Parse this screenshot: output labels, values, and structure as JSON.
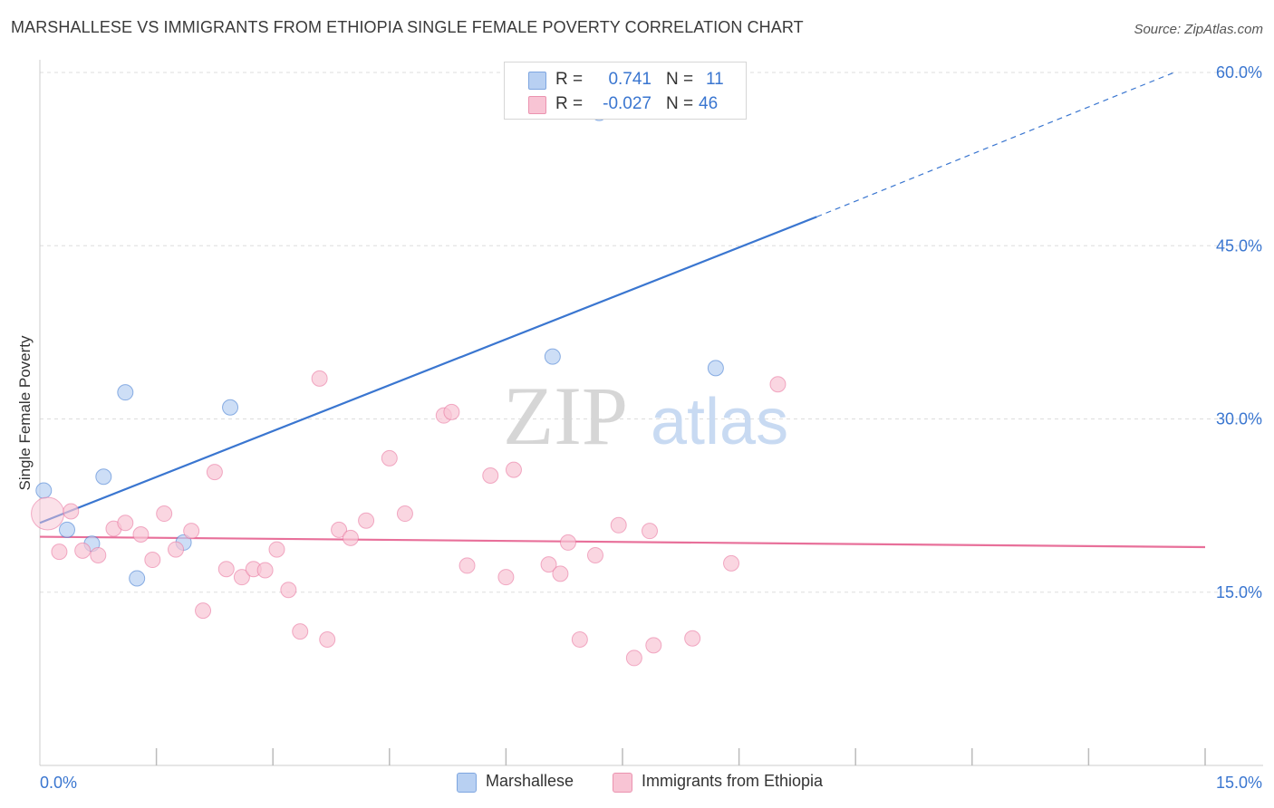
{
  "title": "MARSHALLESE VS IMMIGRANTS FROM ETHIOPIA SINGLE FEMALE POVERTY CORRELATION CHART",
  "source": "Source: ZipAtlas.com",
  "watermark": {
    "zip": "ZIP",
    "atlas": "atlas"
  },
  "colors": {
    "blue": "#3a76d0",
    "blue_fill": "#b8d0f2",
    "pink": "#e8709a",
    "pink_fill": "#f8c4d4",
    "grid": "#dddddd",
    "axis_text": "#3a76d0"
  },
  "legend_top": {
    "rows": [
      {
        "r_label": "R =",
        "r_value": "0.741",
        "n_label": "N =",
        "n_value": "11"
      },
      {
        "r_label": "R =",
        "r_value": "-0.027",
        "n_label": "N =",
        "n_value": "46"
      }
    ]
  },
  "legend_bottom": [
    "Marshallese",
    "Immigrants from Ethiopia"
  ],
  "chart_data": {
    "type": "scatter",
    "title": "MARSHALLESE VS IMMIGRANTS FROM ETHIOPIA SINGLE FEMALE POVERTY CORRELATION CHART",
    "xlabel": "",
    "ylabel": "Single Female Poverty",
    "xlim": [
      0,
      15
    ],
    "ylim": [
      0,
      60
    ],
    "x_tick_labels": [
      "0.0%",
      "15.0%"
    ],
    "y_ticks": [
      15,
      30,
      45,
      60
    ],
    "y_tick_labels": [
      "15.0%",
      "30.0%",
      "45.0%",
      "60.0%"
    ],
    "series": [
      {
        "name": "Marshallese",
        "color": "blue",
        "points": [
          [
            0.05,
            23.8
          ],
          [
            0.35,
            20.4
          ],
          [
            0.67,
            19.2
          ],
          [
            0.82,
            25.0
          ],
          [
            1.1,
            32.3
          ],
          [
            1.25,
            16.2
          ],
          [
            1.85,
            19.3
          ],
          [
            2.45,
            31.0
          ],
          [
            6.6,
            35.4
          ],
          [
            7.2,
            56.5
          ],
          [
            8.7,
            34.4
          ]
        ],
        "trend": {
          "x0": 0.0,
          "y0": 21.0,
          "x1": 10.0,
          "y1": 47.5,
          "dash_x1": 14.6,
          "dash_y1": 60.0
        }
      },
      {
        "name": "Immigrants from Ethiopia",
        "color": "pink",
        "points": [
          [
            0.1,
            21.8
          ],
          [
            0.25,
            18.5
          ],
          [
            0.4,
            22.0
          ],
          [
            0.55,
            18.6
          ],
          [
            0.75,
            18.2
          ],
          [
            0.95,
            20.5
          ],
          [
            1.1,
            21.0
          ],
          [
            1.3,
            20.0
          ],
          [
            1.45,
            17.8
          ],
          [
            1.6,
            21.8
          ],
          [
            1.75,
            18.7
          ],
          [
            1.95,
            20.3
          ],
          [
            2.1,
            13.4
          ],
          [
            2.25,
            25.4
          ],
          [
            2.4,
            17.0
          ],
          [
            2.6,
            16.3
          ],
          [
            2.75,
            17.0
          ],
          [
            2.9,
            16.9
          ],
          [
            3.05,
            18.7
          ],
          [
            3.2,
            15.2
          ],
          [
            3.35,
            11.6
          ],
          [
            3.6,
            33.5
          ],
          [
            3.7,
            10.9
          ],
          [
            3.85,
            20.4
          ],
          [
            4.0,
            19.7
          ],
          [
            4.2,
            21.2
          ],
          [
            4.5,
            26.6
          ],
          [
            4.7,
            21.8
          ],
          [
            5.2,
            30.3
          ],
          [
            5.3,
            30.6
          ],
          [
            5.5,
            17.3
          ],
          [
            5.8,
            25.1
          ],
          [
            6.0,
            16.3
          ],
          [
            6.1,
            25.6
          ],
          [
            6.55,
            17.4
          ],
          [
            6.7,
            16.6
          ],
          [
            6.8,
            19.3
          ],
          [
            6.95,
            10.9
          ],
          [
            7.15,
            18.2
          ],
          [
            7.45,
            20.8
          ],
          [
            7.65,
            9.3
          ],
          [
            7.85,
            20.3
          ],
          [
            7.9,
            10.4
          ],
          [
            8.4,
            11.0
          ],
          [
            8.9,
            17.5
          ],
          [
            9.5,
            33.0
          ]
        ],
        "trend": {
          "x0": 0.0,
          "y0": 19.8,
          "x1": 15.0,
          "y1": 18.9
        }
      }
    ],
    "grid": true,
    "legend_position": "top-center"
  }
}
